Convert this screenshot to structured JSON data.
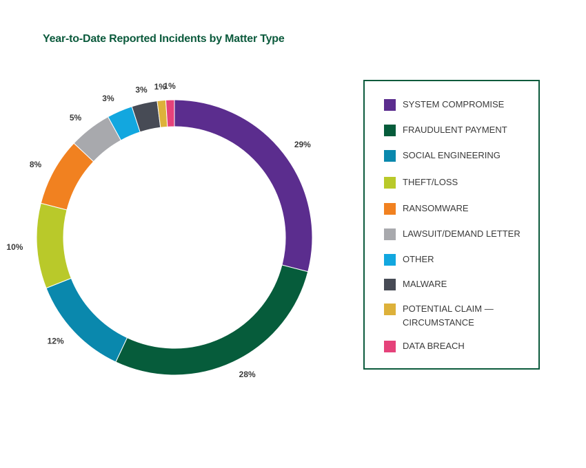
{
  "chart_data": {
    "type": "pie",
    "title": "Year-to-Date Reported Incidents by Matter Type",
    "slices": [
      {
        "name": "SYSTEM COMPROMISE",
        "value": 29,
        "label": "29%",
        "color": "#5b2d8e"
      },
      {
        "name": "FRAUDULENT PAYMENT",
        "value": 28,
        "label": "28%",
        "color": "#065c3b"
      },
      {
        "name": "SOCIAL ENGINEERING",
        "value": 12,
        "label": "12%",
        "color": "#0a88ad"
      },
      {
        "name": "THEFT/LOSS",
        "value": 10,
        "label": "10%",
        "color": "#b9c92a"
      },
      {
        "name": "RANSOMWARE",
        "value": 8,
        "label": "8%",
        "color": "#f18120"
      },
      {
        "name": "LAWSUIT/DEMAND LETTER",
        "value": 5,
        "label": "5%",
        "color": "#a8a9ad"
      },
      {
        "name": "OTHER",
        "value": 3,
        "label": "3%",
        "color": "#12a7df"
      },
      {
        "name": "MALWARE",
        "value": 3,
        "label": "3%",
        "color": "#474b55"
      },
      {
        "name": "POTENTIAL CLAIM — CIRCUMSTANCE",
        "value": 1,
        "label": "1%",
        "color": "#ddb13a"
      },
      {
        "name": "DATA BREACH",
        "value": 1,
        "label": "1%",
        "color": "#e5427a"
      }
    ],
    "donut": true,
    "legend_position": "right"
  },
  "legend": {
    "items": [
      "SYSTEM COMPROMISE",
      "FRAUDULENT PAYMENT",
      "SOCIAL ENGINEERING",
      "THEFT/LOSS",
      "RANSOMWARE",
      "LAWSUIT/DEMAND LETTER",
      "OTHER",
      "MALWARE",
      "POTENTIAL CLAIM —\nCIRCUMSTANCE",
      "DATA BREACH"
    ]
  }
}
